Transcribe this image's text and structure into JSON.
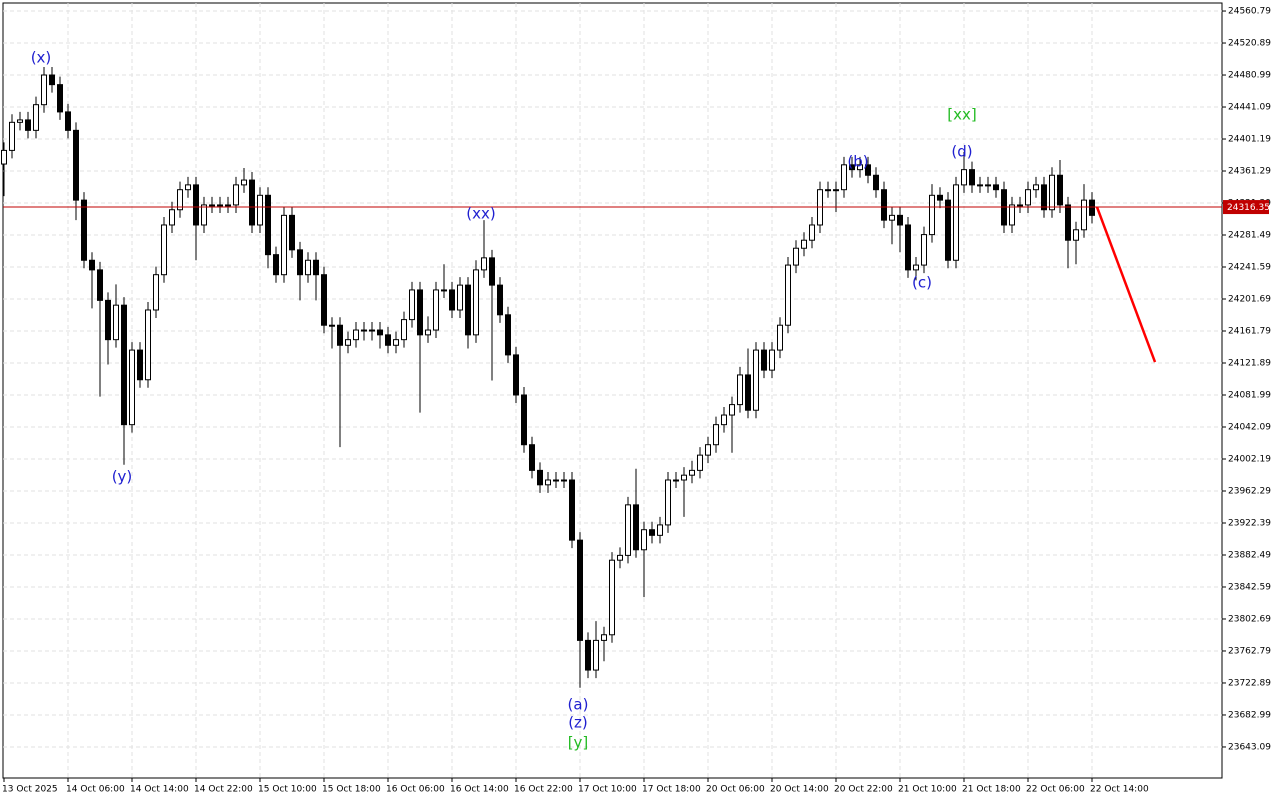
{
  "chart_data": {
    "type": "candlestick",
    "ylim": [
      23604.4,
      24570.8
    ],
    "yticks": [
      24560.79,
      24520.89,
      24480.99,
      24441.09,
      24401.19,
      24361.29,
      24321.39,
      24281.49,
      24241.59,
      24201.69,
      24161.79,
      24121.89,
      24081.99,
      24042.09,
      24002.19,
      23962.29,
      23922.39,
      23882.49,
      23842.59,
      23802.69,
      23762.79,
      23722.89,
      23682.99,
      23643.09
    ],
    "grid": true,
    "categories": [
      "13 Oct 2025",
      null,
      null,
      null,
      null,
      null,
      null,
      null,
      "14 Oct 06:00",
      null,
      null,
      null,
      null,
      null,
      null,
      null,
      "14 Oct 14:00",
      null,
      null,
      null,
      null,
      null,
      null,
      null,
      "14 Oct 22:00",
      null,
      null,
      null,
      null,
      null,
      null,
      null,
      "15 Oct 10:00",
      null,
      null,
      null,
      null,
      null,
      null,
      null,
      "15 Oct 18:00",
      null,
      null,
      null,
      null,
      null,
      null,
      null,
      "16 Oct 06:00",
      null,
      null,
      null,
      null,
      null,
      null,
      null,
      "16 Oct 14:00",
      null,
      null,
      null,
      null,
      null,
      null,
      null,
      "16 Oct 22:00",
      null,
      null,
      null,
      null,
      null,
      null,
      null,
      "17 Oct 10:00",
      null,
      null,
      null,
      null,
      null,
      null,
      null,
      "17 Oct 18:00",
      null,
      null,
      null,
      null,
      null,
      null,
      null,
      "20 Oct 06:00",
      null,
      null,
      null,
      null,
      null,
      null,
      null,
      "20 Oct 14:00",
      null,
      null,
      null,
      null,
      null,
      null,
      null,
      "20 Oct 22:00",
      null,
      null,
      null,
      null,
      null,
      null,
      null,
      "21 Oct 10:00",
      null,
      null,
      null,
      null,
      null,
      null,
      null,
      "21 Oct 18:00",
      null,
      null,
      null,
      null,
      null,
      null,
      null,
      "22 Oct 06:00",
      null,
      null,
      null,
      null,
      null,
      null,
      null,
      "22 Oct 14:00"
    ],
    "open": [
      24370,
      24387,
      24422,
      24425,
      24412,
      24444,
      24481,
      24469,
      24435,
      24412,
      24325,
      24250,
      24238,
      24200,
      24151,
      24194,
      24045,
      24138,
      24101,
      24188,
      24232,
      24294,
      24313,
      24338,
      24344,
      24294,
      24319,
      24319,
      24319,
      24319,
      24344,
      24350,
      24294,
      24331,
      24257,
      24232,
      24306,
      24263,
      24232,
      24250,
      24232,
      24169,
      24169,
      24144,
      24151,
      24163,
      24163,
      24163,
      24157,
      24144,
      24151,
      24176,
      24213,
      24157,
      24163,
      24213,
      24213,
      24188,
      24219,
      24157,
      24238,
      24253,
      24219,
      24182,
      24132,
      24082,
      24020,
      23988,
      23970,
      23976,
      23976,
      23976,
      23901,
      23776,
      23739,
      23776,
      23783,
      23876,
      23882,
      23945,
      23889,
      23914,
      23907,
      23920,
      23976,
      23976,
      23982,
      23988,
      24007,
      24020,
      24045,
      24057,
      24070,
      24107,
      24063,
      24138,
      24113,
      24138,
      24169,
      24244,
      24265,
      24275,
      24294,
      24338,
      24338,
      24338,
      24369,
      24363,
      24369,
      24356,
      24338,
      24300,
      24306,
      24294,
      24238,
      24244,
      24282,
      24331,
      24325,
      24250,
      24344,
      24363,
      24344,
      24344,
      24344,
      24338,
      24294,
      24319,
      24319,
      24338,
      24344,
      24313,
      24356,
      24319,
      24275,
      24288,
      24325
    ],
    "high": [
      24397,
      24432,
      24435,
      24435,
      24454,
      24491,
      24491,
      24479,
      24445,
      24422,
      24335,
      24260,
      24248,
      24210,
      24220,
      24204,
      24148,
      24148,
      24198,
      24242,
      24304,
      24323,
      24348,
      24354,
      24354,
      24329,
      24329,
      24329,
      24329,
      24354,
      24365,
      24360,
      24341,
      24341,
      24267,
      24316,
      24316,
      24273,
      24260,
      24260,
      24242,
      24179,
      24179,
      24161,
      24173,
      24173,
      24173,
      24173,
      24167,
      24161,
      24186,
      24223,
      24223,
      24180,
      24223,
      24245,
      24223,
      24229,
      24229,
      24250,
      24300,
      24263,
      24229,
      24192,
      24142,
      24092,
      24030,
      23998,
      23986,
      23986,
      23986,
      23986,
      23911,
      23786,
      23800,
      23793,
      23886,
      23892,
      23955,
      23990,
      23924,
      23924,
      23930,
      23986,
      23986,
      23992,
      24000,
      24017,
      24030,
      24055,
      24067,
      24080,
      24117,
      24140,
      24148,
      24148,
      24148,
      24179,
      24254,
      24275,
      24285,
      24304,
      24348,
      24348,
      24348,
      24379,
      24379,
      24379,
      24379,
      24366,
      24348,
      24316,
      24316,
      24304,
      24254,
      24292,
      24345,
      24341,
      24335,
      24354,
      24385,
      24373,
      24354,
      24354,
      24354,
      24348,
      24329,
      24329,
      24348,
      24354,
      24354,
      24366,
      24375,
      24329,
      24298,
      24345,
      24335
    ],
    "low": [
      24330,
      24377,
      24412,
      24402,
      24402,
      24434,
      24459,
      24425,
      24402,
      24300,
      24240,
      24190,
      24080,
      24120,
      24141,
      23995,
      24035,
      24091,
      24091,
      24178,
      24222,
      24284,
      24303,
      24328,
      24250,
      24284,
      24309,
      24309,
      24309,
      24309,
      24334,
      24284,
      24284,
      24240,
      24222,
      24222,
      24253,
      24200,
      24222,
      24200,
      24159,
      24140,
      24017,
      24134,
      24141,
      24150,
      24150,
      24140,
      24134,
      24134,
      24141,
      24166,
      24060,
      24147,
      24153,
      24203,
      24178,
      24178,
      24140,
      24147,
      24228,
      24100,
      24172,
      24122,
      24072,
      24010,
      23978,
      23960,
      23960,
      23966,
      23966,
      23891,
      23717,
      23729,
      23729,
      23750,
      23773,
      23866,
      23872,
      23879,
      23830,
      23897,
      23897,
      23910,
      23966,
      23930,
      23972,
      23978,
      23997,
      24010,
      24035,
      24010,
      24060,
      24053,
      24053,
      24103,
      24103,
      24128,
      24159,
      24234,
      24255,
      24265,
      24284,
      24328,
      24310,
      24328,
      24353,
      24353,
      24346,
      24328,
      24290,
      24270,
      24260,
      24228,
      24225,
      24234,
      24272,
      24315,
      24240,
      24240,
      24334,
      24334,
      24334,
      24334,
      24328,
      24284,
      24284,
      24309,
      24309,
      24328,
      24303,
      24303,
      24309,
      24240,
      24245,
      24278,
      24296
    ],
    "close": [
      24387,
      24422,
      24425,
      24412,
      24444,
      24481,
      24469,
      24435,
      24412,
      24325,
      24250,
      24238,
      24200,
      24151,
      24194,
      24045,
      24138,
      24101,
      24188,
      24232,
      24294,
      24313,
      24338,
      24344,
      24294,
      24319,
      24319,
      24319,
      24319,
      24344,
      24350,
      24294,
      24331,
      24257,
      24232,
      24306,
      24263,
      24232,
      24250,
      24232,
      24169,
      24169,
      24144,
      24151,
      24163,
      24163,
      24163,
      24157,
      24144,
      24151,
      24176,
      24213,
      24157,
      24163,
      24213,
      24213,
      24188,
      24219,
      24157,
      24238,
      24253,
      24219,
      24182,
      24132,
      24082,
      24020,
      23988,
      23970,
      23976,
      23976,
      23976,
      23901,
      23776,
      23739,
      23776,
      23783,
      23876,
      23882,
      23945,
      23889,
      23914,
      23907,
      23920,
      23976,
      23976,
      23982,
      23988,
      24007,
      24020,
      24045,
      24057,
      24070,
      24107,
      24063,
      24138,
      24113,
      24138,
      24169,
      24244,
      24265,
      24275,
      24294,
      24338,
      24338,
      24338,
      24369,
      24363,
      24369,
      24356,
      24338,
      24300,
      24306,
      24294,
      24238,
      24244,
      24282,
      24331,
      24325,
      24250,
      24344,
      24363,
      24344,
      24344,
      24344,
      24338,
      24294,
      24319,
      24319,
      24338,
      24344,
      24313,
      24356,
      24319,
      24275,
      24288,
      24325,
      24306
    ],
    "last_price": 24316.35,
    "last_price_color": "#c00000",
    "forecast": {
      "color": "#ff0000",
      "values": [
        24316.35,
        24123
      ]
    },
    "annotations": [
      {
        "text": "(x)",
        "color": "#2020d0"
      },
      {
        "text": "(y)",
        "color": "#2020d0"
      },
      {
        "text": "(xx)",
        "color": "#2020d0"
      },
      {
        "text": "(a)",
        "color": "#2020d0"
      },
      {
        "text": "(z)",
        "color": "#2020d0"
      },
      {
        "text": "[y]",
        "color": "#22bb22"
      },
      {
        "text": "(b)",
        "color": "#2020d0"
      },
      {
        "text": "(c)",
        "color": "#2020d0"
      },
      {
        "text": "(d)",
        "color": "#2020d0"
      },
      {
        "text": "[xx]",
        "color": "#22bb22"
      }
    ]
  }
}
